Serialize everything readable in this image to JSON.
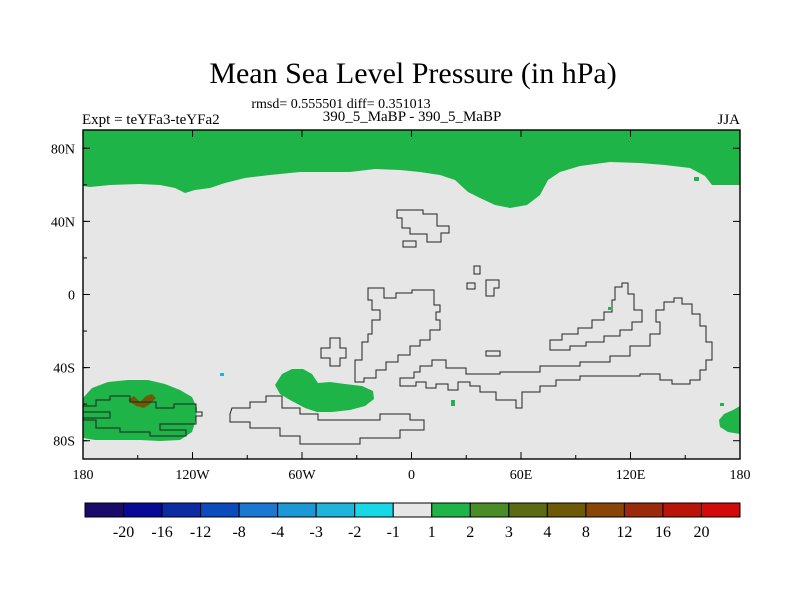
{
  "chart_data": {
    "type": "heatmap",
    "title": "Mean Sea Level Pressure (in hPa)",
    "subtitle_stats": "rmsd= 0.555501 diff= 0.351013",
    "experiment_label": "Expt = teYFa3-teYFa2",
    "comparison_label": "390_5_MaBP - 390_5_MaBP",
    "season": "JJA",
    "projection": "cylindrical equidistant",
    "lon_range": [
      -180,
      180
    ],
    "lat_range": [
      -90,
      90
    ],
    "x_ticks": [
      {
        "lon": -180,
        "label": "180"
      },
      {
        "lon": -120,
        "label": "120W"
      },
      {
        "lon": -60,
        "label": "60W"
      },
      {
        "lon": 0,
        "label": "0"
      },
      {
        "lon": 60,
        "label": "60E"
      },
      {
        "lon": 120,
        "label": "120E"
      },
      {
        "lon": 180,
        "label": "180"
      }
    ],
    "y_ticks": [
      {
        "lat": 80,
        "label": "80N"
      },
      {
        "lat": 40,
        "label": "40N"
      },
      {
        "lat": 0,
        "label": "0"
      },
      {
        "lat": -40,
        "label": "40S"
      },
      {
        "lat": -80,
        "label": "80S"
      }
    ],
    "colorbar": {
      "labels": [
        "-20",
        "-16",
        "-12",
        "-8",
        "-4",
        "-3",
        "-2",
        "-1",
        "1",
        "2",
        "3",
        "4",
        "8",
        "12",
        "16",
        "20"
      ],
      "colors": [
        "#1a0a6b",
        "#080a96",
        "#0c2ca4",
        "#0a4cbe",
        "#1a78d2",
        "#1c98d6",
        "#1eb4dc",
        "#18d8e6",
        "#e6e6e6",
        "#1fb448",
        "#4a8c26",
        "#5c6a12",
        "#6e5a06",
        "#8a4408",
        "#9a2a0a",
        "#b81408",
        "#d20a0a"
      ]
    },
    "regions": [
      {
        "name": "arctic",
        "value_bin": "1 to 2"
      },
      {
        "name": "south-pacific",
        "value_bin": "1 to 2"
      },
      {
        "name": "south-atlantic",
        "value_bin": "1 to 2"
      },
      {
        "name": "southeast-edge",
        "value_bin": "1 to 2"
      },
      {
        "name": "south-pacific-core",
        "value_bin": "8 to 12"
      },
      {
        "name": "background",
        "value_bin": "-1 to 1"
      }
    ]
  }
}
